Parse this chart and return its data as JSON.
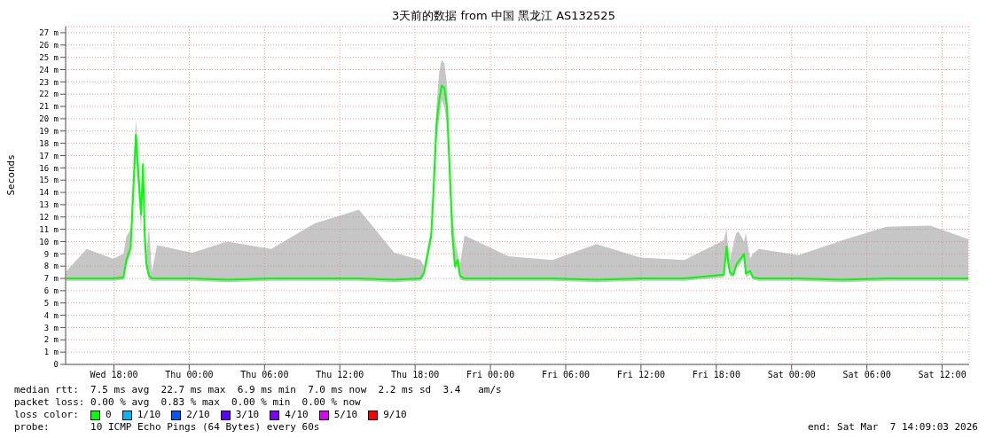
{
  "chart_data": {
    "type": "line",
    "title": "3天前的数据 from 中国 黑龙江 AS132525",
    "ylabel": "Seconds",
    "x": [
      "2026-03-04T14:13",
      "2026-03-04T15:50",
      "2026-03-04T17:56",
      "2026-03-04T18:46",
      "2026-03-04T18:59",
      "2026-03-04T19:20",
      "2026-03-04T19:32",
      "2026-03-04T19:45",
      "2026-03-04T19:53",
      "2026-03-04T20:10",
      "2026-03-04T20:19",
      "2026-03-04T20:27",
      "2026-03-04T20:35",
      "2026-03-04T20:48",
      "2026-03-04T21:01",
      "2026-03-04T21:26",
      "2026-03-05T00:14",
      "2026-03-05T03:02",
      "2026-03-05T06:32",
      "2026-03-05T10:02",
      "2026-03-05T13:32",
      "2026-03-05T16:20",
      "2026-03-05T18:26",
      "2026-03-05T18:43",
      "2026-03-05T19:00",
      "2026-03-05T19:17",
      "2026-03-05T19:29",
      "2026-03-05T19:42",
      "2026-03-05T19:55",
      "2026-03-05T20:07",
      "2026-03-05T20:20",
      "2026-03-05T20:32",
      "2026-03-05T20:45",
      "2026-03-05T20:58",
      "2026-03-05T21:10",
      "2026-03-05T21:23",
      "2026-03-05T21:35",
      "2026-03-05T21:56",
      "2026-03-06T01:26",
      "2026-03-06T04:56",
      "2026-03-06T08:27",
      "2026-03-06T11:57",
      "2026-03-06T15:27",
      "2026-03-06T18:36",
      "2026-03-06T18:49",
      "2026-03-06T18:57",
      "2026-03-06T19:05",
      "2026-03-06T19:22",
      "2026-03-06T19:35",
      "2026-03-06T19:47",
      "2026-03-06T20:13",
      "2026-03-06T20:21",
      "2026-03-06T20:42",
      "2026-03-06T20:55",
      "2026-03-06T21:24",
      "2026-03-07T00:33",
      "2026-03-07T04:03",
      "2026-03-07T07:33",
      "2026-03-07T11:03",
      "2026-03-07T14:05"
    ],
    "series": [
      {
        "name": "0",
        "color": "#00ff00",
        "values": [
          7.0,
          7.0,
          7.0,
          7.1,
          8.5,
          9.5,
          14,
          18.7,
          16.5,
          12.2,
          16.3,
          10.6,
          8.2,
          7.2,
          7.0,
          7.0,
          7.0,
          6.9,
          7.0,
          7.0,
          7.0,
          6.9,
          7.0,
          7.5,
          9.0,
          10.5,
          14.5,
          19.5,
          21.5,
          22.7,
          22.5,
          21.0,
          16.0,
          10.6,
          8.0,
          8.5,
          7.2,
          7.0,
          7.0,
          7.0,
          6.9,
          7.0,
          7.0,
          7.3,
          9.6,
          8.3,
          7.5,
          7.3,
          8.1,
          8.4,
          9.0,
          7.4,
          7.6,
          7.1,
          7.0,
          7.0,
          6.9,
          7.0,
          7.0,
          7.0
        ],
        "lower": [
          6.8,
          6.8,
          6.8,
          6.9,
          8.0,
          9.0,
          13,
          17.5,
          15.0,
          11.0,
          15.0,
          10.0,
          7.8,
          6.9,
          6.8,
          6.8,
          6.8,
          6.7,
          6.8,
          6.8,
          6.8,
          6.7,
          6.8,
          7.2,
          8.5,
          10.0,
          13.5,
          18.0,
          20.0,
          21.5,
          21.0,
          19.5,
          15.0,
          10.0,
          7.7,
          8.0,
          6.9,
          6.8,
          6.8,
          6.8,
          6.7,
          6.8,
          6.8,
          7.1,
          9.0,
          7.9,
          7.2,
          7.1,
          7.8,
          8.0,
          8.6,
          7.1,
          7.3,
          6.9,
          6.8,
          6.8,
          6.7,
          6.8,
          6.8,
          6.8
        ],
        "upper": [
          7.6,
          9.4,
          8.6,
          9.0,
          10.4,
          11.0,
          15,
          20.0,
          18.0,
          13.0,
          17.0,
          11.8,
          9.0,
          11.2,
          7.5,
          9.7,
          9.1,
          10.0,
          9.4,
          11.5,
          12.6,
          9.1,
          8.5,
          8.0,
          9.5,
          11.0,
          15.5,
          21.0,
          23.8,
          24.8,
          24.5,
          22.8,
          17.0,
          12.5,
          10.2,
          9.0,
          8.2,
          10.5,
          8.8,
          8.5,
          9.8,
          8.7,
          8.5,
          10.1,
          11.0,
          9.5,
          8.5,
          9.8,
          10.7,
          10.8,
          10.0,
          10.7,
          8.6,
          9.0,
          9.4,
          8.9,
          10.1,
          11.2,
          11.3,
          10.2
        ]
      },
      {
        "name": "1/10",
        "color": "#00b8ff",
        "values": [
          null,
          null,
          null,
          null,
          null,
          null,
          null,
          null,
          null,
          null,
          null,
          null,
          null,
          null,
          null,
          null,
          null,
          null,
          null,
          null,
          null,
          null,
          null,
          null,
          null,
          null,
          null,
          null,
          null,
          null,
          null,
          null,
          null,
          null,
          null,
          null,
          null,
          null,
          null,
          null,
          null,
          null,
          null,
          null,
          null,
          null,
          null,
          null,
          null,
          null,
          null,
          null,
          null,
          null,
          null,
          null,
          null,
          null,
          null,
          null
        ]
      },
      {
        "name": "2/10",
        "color": "#0059ff",
        "values": [
          null,
          null,
          null,
          null,
          null,
          null,
          null,
          null,
          null,
          null,
          null,
          null,
          null,
          null,
          null,
          null,
          null,
          null,
          null,
          null,
          null,
          null,
          null,
          null,
          null,
          null,
          null,
          null,
          null,
          null,
          null,
          null,
          null,
          null,
          null,
          null,
          null,
          null,
          null,
          null,
          null,
          null,
          null,
          null,
          null,
          null,
          null,
          null,
          null,
          null,
          null,
          null,
          null,
          null,
          null,
          null,
          null,
          null,
          null,
          null
        ]
      },
      {
        "name": "3/10",
        "color": "#5e00ff",
        "values": [
          null,
          null,
          null,
          null,
          null,
          null,
          null,
          null,
          null,
          null,
          null,
          null,
          null,
          null,
          null,
          null,
          null,
          null,
          null,
          null,
          null,
          null,
          null,
          null,
          null,
          null,
          null,
          null,
          null,
          null,
          null,
          null,
          null,
          null,
          null,
          null,
          null,
          null,
          null,
          null,
          null,
          null,
          null,
          null,
          null,
          null,
          null,
          null,
          null,
          null,
          null,
          null,
          null,
          null,
          null,
          null,
          null,
          null,
          null,
          null
        ]
      },
      {
        "name": "4/10",
        "color": "#7e00ff",
        "values": [
          null,
          null,
          null,
          null,
          null,
          null,
          null,
          null,
          null,
          null,
          null,
          null,
          null,
          null,
          null,
          null,
          null,
          null,
          null,
          null,
          null,
          null,
          null,
          null,
          null,
          null,
          null,
          null,
          null,
          null,
          null,
          null,
          null,
          null,
          null,
          null,
          null,
          null,
          null,
          null,
          null,
          null,
          null,
          null,
          null,
          null,
          null,
          null,
          null,
          null,
          null,
          null,
          null,
          null,
          null,
          null,
          null,
          null,
          null,
          null
        ]
      },
      {
        "name": "5/10",
        "color": "#dd00ff",
        "values": [
          null,
          null,
          null,
          null,
          null,
          null,
          null,
          null,
          null,
          null,
          null,
          null,
          null,
          null,
          null,
          null,
          null,
          null,
          null,
          null,
          null,
          null,
          null,
          null,
          null,
          null,
          null,
          null,
          null,
          null,
          null,
          null,
          null,
          null,
          null,
          null,
          null,
          null,
          null,
          null,
          null,
          null,
          null,
          null,
          null,
          null,
          null,
          null,
          null,
          null,
          null,
          null,
          null,
          null,
          null,
          null,
          null,
          null,
          null,
          null
        ]
      },
      {
        "name": "9/10",
        "color": "#ff0000",
        "values": [
          null,
          null,
          null,
          null,
          null,
          null,
          null,
          null,
          null,
          null,
          null,
          null,
          null,
          null,
          null,
          null,
          null,
          null,
          null,
          null,
          null,
          null,
          null,
          null,
          null,
          null,
          null,
          null,
          null,
          null,
          null,
          null,
          null,
          null,
          null,
          null,
          null,
          null,
          null,
          null,
          null,
          null,
          null,
          null,
          null,
          null,
          null,
          null,
          null,
          null,
          null,
          null,
          null,
          null,
          null,
          null,
          null,
          null,
          null,
          null
        ]
      }
    ],
    "legend_title": "loss color:",
    "legend": "bottom",
    "grid": true,
    "line_style": "solid",
    "xlim": [
      "2026-03-04T14:09",
      "2026-03-07T14:09"
    ],
    "xticks": [
      {
        "value": "2026-03-04T18:00",
        "label": "Wed 18:00"
      },
      {
        "value": "2026-03-05T00:00",
        "label": "Thu 00:00"
      },
      {
        "value": "2026-03-05T06:00",
        "label": "Thu 06:00"
      },
      {
        "value": "2026-03-05T12:00",
        "label": "Thu 12:00"
      },
      {
        "value": "2026-03-05T18:00",
        "label": "Thu 18:00"
      },
      {
        "value": "2026-03-06T00:00",
        "label": "Fri 00:00"
      },
      {
        "value": "2026-03-06T06:00",
        "label": "Fri 06:00"
      },
      {
        "value": "2026-03-06T12:00",
        "label": "Fri 12:00"
      },
      {
        "value": "2026-03-06T18:00",
        "label": "Fri 18:00"
      },
      {
        "value": "2026-03-07T00:00",
        "label": "Sat 00:00"
      },
      {
        "value": "2026-03-07T06:00",
        "label": "Sat 06:00"
      },
      {
        "value": "2026-03-07T12:00",
        "label": "Sat 12:00"
      }
    ],
    "ylim": [
      0,
      27.5
    ],
    "yticks": [
      0,
      {
        "value": 1,
        "label": "1 m"
      },
      {
        "value": 2,
        "label": "2 m"
      },
      {
        "value": 3,
        "label": "3 m"
      },
      {
        "value": 4,
        "label": "4 m"
      },
      {
        "value": 5,
        "label": "5 m"
      },
      {
        "value": 6,
        "label": "6 m"
      },
      {
        "value": 7,
        "label": "7 m"
      },
      {
        "value": 8,
        "label": "8 m"
      },
      {
        "value": 9,
        "label": "9 m"
      },
      {
        "value": 10,
        "label": "10 m"
      },
      {
        "value": 11,
        "label": "11 m"
      },
      {
        "value": 12,
        "label": "12 m"
      },
      {
        "value": 13,
        "label": "13 m"
      },
      {
        "value": 14,
        "label": "14 m"
      },
      {
        "value": 15,
        "label": "15 m"
      },
      {
        "value": 16,
        "label": "16 m"
      },
      {
        "value": 17,
        "label": "17 m"
      },
      {
        "value": 18,
        "label": "18 m"
      },
      {
        "value": 19,
        "label": "19 m"
      },
      {
        "value": 20,
        "label": "20 m"
      },
      {
        "value": 21,
        "label": "21 m"
      },
      {
        "value": 22,
        "label": "22 m"
      },
      {
        "value": 23,
        "label": "23 m"
      },
      {
        "value": 24,
        "label": "24 m"
      },
      {
        "value": 25,
        "label": "25 m"
      },
      {
        "value": 26,
        "label": "26 m"
      },
      {
        "value": 27,
        "label": "27 m"
      }
    ],
    "annotations": [
      "median rtt:  7.5 ms avg  22.7 ms max  6.9 ms min  7.0 ms now  2.2 ms sd  3.4   am/s",
      "packet loss: 0.00 % avg  0.83 % max  0.00 % min  0.00 % now",
      "probe:       10 ICMP Echo Pings (64 Bytes) every 60s",
      "end: Sat Mar  7 14:09:03 2026"
    ]
  }
}
